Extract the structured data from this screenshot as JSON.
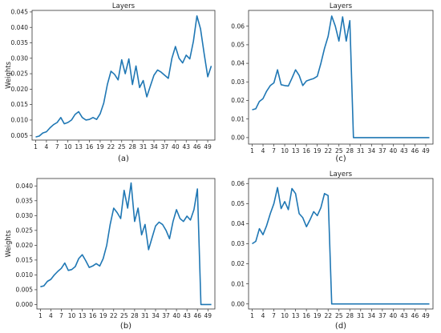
{
  "chart_data": [
    {
      "type": "line",
      "panel": "a",
      "title": "Layers",
      "ylabel": "Weights",
      "caption": "(a)",
      "x": [
        1,
        2,
        3,
        4,
        5,
        6,
        7,
        8,
        9,
        10,
        11,
        12,
        13,
        14,
        15,
        16,
        17,
        18,
        19,
        20,
        21,
        22,
        23,
        24,
        25,
        26,
        27,
        28,
        29,
        30,
        31,
        32,
        33,
        34,
        35,
        36,
        37,
        38,
        39,
        40,
        41,
        42,
        43,
        44,
        45,
        46,
        47,
        48,
        49,
        50
      ],
      "xticks": [
        1,
        4,
        7,
        10,
        13,
        16,
        19,
        22,
        25,
        28,
        31,
        34,
        37,
        40,
        43,
        46,
        49
      ],
      "ylim": [
        0.0035,
        0.0455
      ],
      "yticks": [
        0.005,
        0.01,
        0.015,
        0.02,
        0.025,
        0.03,
        0.035,
        0.04,
        0.045
      ],
      "ytick_labels": [
        "0.005",
        "0.010",
        "0.015",
        "0.020",
        "0.025",
        "0.030",
        "0.035",
        "0.040",
        "0.045"
      ],
      "values": [
        0.0045,
        0.0048,
        0.0058,
        0.0062,
        0.0075,
        0.0085,
        0.0092,
        0.0108,
        0.0088,
        0.0092,
        0.01,
        0.0118,
        0.0127,
        0.0108,
        0.01,
        0.0102,
        0.0108,
        0.0102,
        0.012,
        0.0155,
        0.0215,
        0.0258,
        0.0248,
        0.023,
        0.0295,
        0.025,
        0.0298,
        0.0215,
        0.0275,
        0.0205,
        0.0228,
        0.0175,
        0.021,
        0.0245,
        0.0262,
        0.0255,
        0.0245,
        0.0235,
        0.03,
        0.0338,
        0.03,
        0.0285,
        0.031,
        0.0298,
        0.0355,
        0.0437,
        0.0395,
        0.0315,
        0.024,
        0.0275
      ]
    },
    {
      "type": "line",
      "panel": "c",
      "title": "Layers",
      "ylabel": "",
      "caption": "(c)",
      "x": [
        1,
        2,
        3,
        4,
        5,
        6,
        7,
        8,
        9,
        10,
        11,
        12,
        13,
        14,
        15,
        16,
        17,
        18,
        19,
        20,
        21,
        22,
        23,
        24,
        25,
        26,
        27,
        28,
        29,
        30,
        31,
        32,
        33,
        34,
        35,
        36,
        37,
        38,
        39,
        40,
        41,
        42,
        43,
        44,
        45,
        46,
        47,
        48,
        49,
        50
      ],
      "xticks": [
        1,
        4,
        7,
        10,
        13,
        16,
        19,
        22,
        25,
        28,
        31,
        34,
        37,
        40,
        43,
        46,
        49
      ],
      "ylim": [
        -0.0035,
        0.0685
      ],
      "yticks": [
        0.0,
        0.01,
        0.02,
        0.03,
        0.04,
        0.05,
        0.06
      ],
      "ytick_labels": [
        "0.00",
        "0.01",
        "0.02",
        "0.03",
        "0.04",
        "0.05",
        "0.06"
      ],
      "values": [
        0.015,
        0.0155,
        0.0195,
        0.021,
        0.025,
        0.028,
        0.0295,
        0.0365,
        0.0285,
        0.028,
        0.0278,
        0.032,
        0.0365,
        0.0335,
        0.028,
        0.0305,
        0.0312,
        0.0318,
        0.033,
        0.04,
        0.048,
        0.0545,
        0.0655,
        0.06,
        0.052,
        0.065,
        0.052,
        0.063,
        0.0,
        0.0,
        0.0,
        0.0,
        0.0,
        0.0,
        0.0,
        0.0,
        0.0,
        0.0,
        0.0,
        0.0,
        0.0,
        0.0,
        0.0,
        0.0,
        0.0,
        0.0,
        0.0,
        0.0,
        0.0,
        0.0
      ]
    },
    {
      "type": "line",
      "panel": "b",
      "title": "",
      "ylabel": "Weights",
      "caption": "(b)",
      "x": [
        1,
        2,
        3,
        4,
        5,
        6,
        7,
        8,
        9,
        10,
        11,
        12,
        13,
        14,
        15,
        16,
        17,
        18,
        19,
        20,
        21,
        22,
        23,
        24,
        25,
        26,
        27,
        28,
        29,
        30,
        31,
        32,
        33,
        34,
        35,
        36,
        37,
        38,
        39,
        40,
        41,
        42,
        43,
        44,
        45,
        46,
        47,
        48,
        49,
        50
      ],
      "xticks": [
        1,
        4,
        7,
        10,
        13,
        16,
        19,
        22,
        25,
        28,
        31,
        34,
        37,
        40,
        43,
        46,
        49
      ],
      "ylim": [
        -0.0015,
        0.0425
      ],
      "yticks": [
        0.0,
        0.005,
        0.01,
        0.015,
        0.02,
        0.025,
        0.03,
        0.035,
        0.04
      ],
      "ytick_labels": [
        "0.000",
        "0.005",
        "0.010",
        "0.015",
        "0.020",
        "0.025",
        "0.030",
        "0.035",
        "0.040"
      ],
      "values": [
        0.006,
        0.0063,
        0.0078,
        0.0085,
        0.01,
        0.0112,
        0.0122,
        0.014,
        0.0115,
        0.0118,
        0.0128,
        0.0155,
        0.0168,
        0.0148,
        0.0125,
        0.013,
        0.0138,
        0.013,
        0.0155,
        0.02,
        0.027,
        0.0325,
        0.031,
        0.029,
        0.0385,
        0.0325,
        0.041,
        0.028,
        0.0325,
        0.0235,
        0.027,
        0.0185,
        0.0225,
        0.0265,
        0.0278,
        0.027,
        0.025,
        0.0222,
        0.028,
        0.032,
        0.029,
        0.028,
        0.0298,
        0.0285,
        0.032,
        0.039,
        0.0,
        0.0,
        0.0,
        0.0
      ]
    },
    {
      "type": "line",
      "panel": "d",
      "title": "Layers",
      "ylabel": "",
      "caption": "(d)",
      "x": [
        1,
        2,
        3,
        4,
        5,
        6,
        7,
        8,
        9,
        10,
        11,
        12,
        13,
        14,
        15,
        16,
        17,
        18,
        19,
        20,
        21,
        22,
        23,
        24,
        25,
        26,
        27,
        28,
        29,
        30,
        31,
        32,
        33,
        34,
        35,
        36,
        37,
        38,
        39,
        40,
        41,
        42,
        43,
        44,
        45,
        46,
        47,
        48,
        49,
        50
      ],
      "xticks": [
        1,
        4,
        7,
        10,
        13,
        16,
        19,
        22,
        25,
        28,
        31,
        34,
        37,
        40,
        43,
        46,
        49
      ],
      "ylim": [
        -0.0025,
        0.0625
      ],
      "yticks": [
        0.0,
        0.01,
        0.02,
        0.03,
        0.04,
        0.05,
        0.06
      ],
      "ytick_labels": [
        "0.00",
        "0.01",
        "0.02",
        "0.03",
        "0.04",
        "0.05",
        "0.06"
      ],
      "values": [
        0.03,
        0.0312,
        0.0375,
        0.0345,
        0.039,
        0.045,
        0.05,
        0.058,
        0.0475,
        0.051,
        0.047,
        0.0575,
        0.055,
        0.045,
        0.043,
        0.0385,
        0.042,
        0.046,
        0.044,
        0.048,
        0.055,
        0.054,
        0.0,
        0.0,
        0.0,
        0.0,
        0.0,
        0.0,
        0.0,
        0.0,
        0.0,
        0.0,
        0.0,
        0.0,
        0.0,
        0.0,
        0.0,
        0.0,
        0.0,
        0.0,
        0.0,
        0.0,
        0.0,
        0.0,
        0.0,
        0.0,
        0.0,
        0.0,
        0.0,
        0.0
      ]
    }
  ],
  "colors": {
    "line": "#1f77b4",
    "axis": "#333333",
    "text": "#222222"
  }
}
